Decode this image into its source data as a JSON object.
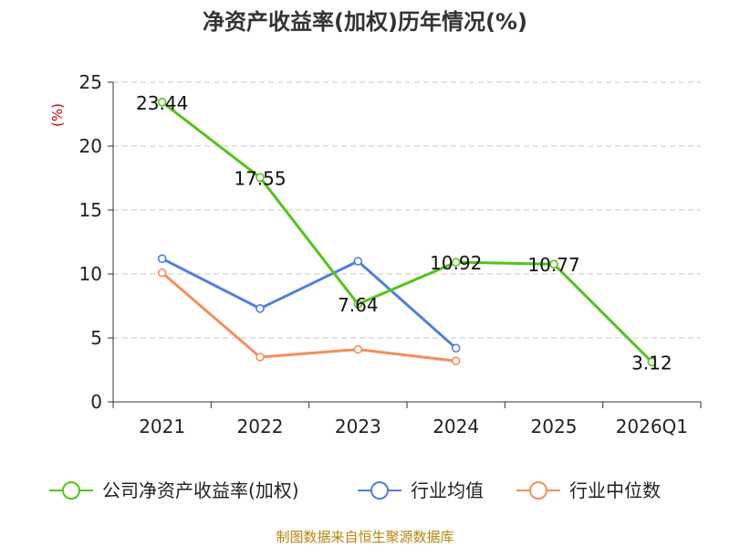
{
  "chart_data": {
    "type": "line",
    "title": "净资产收益率(加权)历年情况(%)",
    "ylabel": "(%)",
    "xlabel": "",
    "categories": [
      "2021",
      "2022",
      "2023",
      "2024",
      "2025",
      "2026Q1"
    ],
    "ylim": [
      0,
      25
    ],
    "yticks": [
      0,
      5,
      10,
      15,
      20,
      25
    ],
    "grid": true,
    "legend_position": "bottom",
    "series": [
      {
        "name": "公司净资产收益率(加权)",
        "color": "#52c41a",
        "values": [
          23.44,
          17.55,
          7.64,
          10.92,
          10.77,
          3.12
        ],
        "labels": [
          "23.44",
          "17.55",
          "7.64",
          "10.92",
          "10.77",
          "3.12"
        ]
      },
      {
        "name": "行业均值",
        "color": "#4e7fdd",
        "values": [
          11.2,
          7.3,
          11.0,
          4.2,
          null,
          null
        ]
      },
      {
        "name": "行业中位数",
        "color": "#f58d5c",
        "values": [
          10.1,
          3.5,
          4.1,
          3.2,
          null,
          null
        ]
      }
    ]
  },
  "footer": {
    "source": "制图数据来自恒生聚源数据库"
  }
}
